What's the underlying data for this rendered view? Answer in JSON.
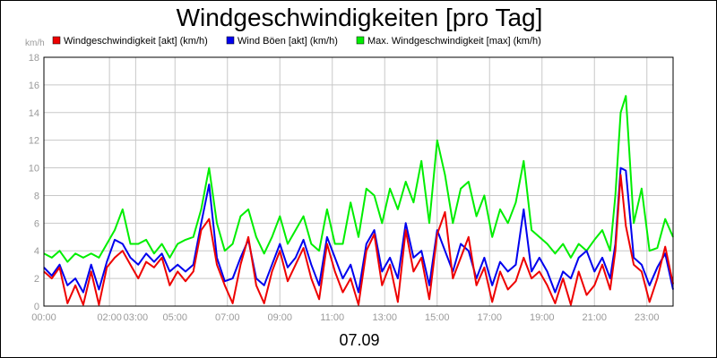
{
  "chart_data": {
    "type": "line",
    "title": "Windgeschwindigkeiten [pro Tag]",
    "ylabel": "km/h",
    "xlabel": "07.09",
    "ylim": [
      0,
      18
    ],
    "yticks": [
      0,
      2,
      4,
      6,
      8,
      10,
      12,
      14,
      16,
      18
    ],
    "xlim": [
      0,
      24
    ],
    "xtick_labels": [
      {
        "x": 0,
        "label": "00:00"
      },
      {
        "x": 2.5,
        "label": "02:00"
      },
      {
        "x": 3.5,
        "label": "03:00"
      },
      {
        "x": 5,
        "label": "05:00"
      },
      {
        "x": 7,
        "label": "07:00"
      },
      {
        "x": 9,
        "label": "09:00"
      },
      {
        "x": 11,
        "label": "11:00"
      },
      {
        "x": 13,
        "label": "13:00"
      },
      {
        "x": 15,
        "label": "15:00"
      },
      {
        "x": 17,
        "label": "17:00"
      },
      {
        "x": 19,
        "label": "19:00"
      },
      {
        "x": 21,
        "label": "21:00"
      },
      {
        "x": 23,
        "label": "23:00"
      }
    ],
    "grid": true,
    "legend_position": "top",
    "series": [
      {
        "name": "Windgeschwindigkeit [akt] (km/h)",
        "color": "#ee0000",
        "x": [
          0,
          0.3,
          0.6,
          0.9,
          1.2,
          1.5,
          1.8,
          2.1,
          2.4,
          2.7,
          3.0,
          3.3,
          3.6,
          3.9,
          4.2,
          4.5,
          4.8,
          5.1,
          5.4,
          5.7,
          6.0,
          6.3,
          6.6,
          6.9,
          7.2,
          7.5,
          7.8,
          8.1,
          8.4,
          8.7,
          9.0,
          9.3,
          9.6,
          9.9,
          10.2,
          10.5,
          10.8,
          11.1,
          11.4,
          11.7,
          12.0,
          12.3,
          12.6,
          12.9,
          13.2,
          13.5,
          13.8,
          14.1,
          14.4,
          14.7,
          15.0,
          15.3,
          15.6,
          15.9,
          16.2,
          16.5,
          16.8,
          17.1,
          17.4,
          17.7,
          18.0,
          18.3,
          18.6,
          18.9,
          19.2,
          19.5,
          19.8,
          20.1,
          20.4,
          20.7,
          21.0,
          21.3,
          21.6,
          21.8,
          22.0,
          22.2,
          22.5,
          22.8,
          23.1,
          23.4,
          23.7,
          24.0
        ],
        "y": [
          2.5,
          2.0,
          2.8,
          0.2,
          1.5,
          0.1,
          2.5,
          0.1,
          2.8,
          3.5,
          4.0,
          3.0,
          2.0,
          3.2,
          2.8,
          3.5,
          1.5,
          2.5,
          1.8,
          2.5,
          5.5,
          6.3,
          3.0,
          1.5,
          0.2,
          3.0,
          5.0,
          1.5,
          0.2,
          2.5,
          4.0,
          1.8,
          3.0,
          4.2,
          2.0,
          0.5,
          4.5,
          2.5,
          1.0,
          2.0,
          0.1,
          4.0,
          5.2,
          1.5,
          3.0,
          0.3,
          5.5,
          2.5,
          3.5,
          0.5,
          5.2,
          6.8,
          2.0,
          3.5,
          5.0,
          1.5,
          2.8,
          0.3,
          2.5,
          1.2,
          1.8,
          3.5,
          2.0,
          2.5,
          1.5,
          0.2,
          2.0,
          0.1,
          2.5,
          0.8,
          1.5,
          3.0,
          1.2,
          4.0,
          9.5,
          5.8,
          3.0,
          2.5,
          0.3,
          2.0,
          4.3,
          1.6
        ]
      },
      {
        "name": "Wind Böen [akt] (km/h)",
        "color": "#0000ee",
        "x": [
          0,
          0.3,
          0.6,
          0.9,
          1.2,
          1.5,
          1.8,
          2.1,
          2.4,
          2.7,
          3.0,
          3.3,
          3.6,
          3.9,
          4.2,
          4.5,
          4.8,
          5.1,
          5.4,
          5.7,
          6.0,
          6.3,
          6.6,
          6.9,
          7.2,
          7.5,
          7.8,
          8.1,
          8.4,
          8.7,
          9.0,
          9.3,
          9.6,
          9.9,
          10.2,
          10.5,
          10.8,
          11.1,
          11.4,
          11.7,
          12.0,
          12.3,
          12.6,
          12.9,
          13.2,
          13.5,
          13.8,
          14.1,
          14.4,
          14.7,
          15.0,
          15.3,
          15.6,
          15.9,
          16.2,
          16.5,
          16.8,
          17.1,
          17.4,
          17.7,
          18.0,
          18.3,
          18.6,
          18.9,
          19.2,
          19.5,
          19.8,
          20.1,
          20.4,
          20.7,
          21.0,
          21.3,
          21.6,
          21.8,
          22.0,
          22.2,
          22.5,
          22.8,
          23.1,
          23.4,
          23.7,
          24.0
        ],
        "y": [
          2.8,
          2.2,
          3.0,
          1.5,
          2.0,
          1.0,
          3.0,
          1.2,
          3.2,
          4.8,
          4.5,
          3.5,
          3.0,
          3.8,
          3.2,
          3.8,
          2.5,
          3.0,
          2.5,
          3.0,
          6.0,
          8.8,
          3.5,
          1.8,
          2.0,
          3.5,
          4.8,
          2.0,
          1.5,
          3.0,
          4.5,
          2.8,
          3.5,
          4.8,
          3.0,
          1.5,
          5.0,
          3.5,
          2.0,
          3.0,
          1.0,
          4.5,
          5.5,
          2.5,
          3.5,
          2.0,
          6.0,
          3.5,
          4.0,
          1.5,
          5.5,
          4.0,
          2.5,
          4.5,
          4.0,
          2.0,
          3.5,
          1.5,
          3.2,
          2.5,
          3.0,
          7.0,
          2.5,
          3.5,
          2.5,
          1.0,
          2.5,
          2.0,
          3.5,
          4.0,
          2.5,
          3.5,
          2.0,
          4.5,
          10.0,
          9.8,
          3.5,
          3.0,
          1.5,
          2.8,
          3.8,
          1.2
        ]
      },
      {
        "name": "Max. Windgeschwindigkeit [max] (km/h)",
        "color": "#00ee00",
        "x": [
          0,
          0.3,
          0.6,
          0.9,
          1.2,
          1.5,
          1.8,
          2.1,
          2.4,
          2.7,
          3.0,
          3.3,
          3.6,
          3.9,
          4.2,
          4.5,
          4.8,
          5.1,
          5.4,
          5.7,
          6.0,
          6.3,
          6.6,
          6.9,
          7.2,
          7.5,
          7.8,
          8.1,
          8.4,
          8.7,
          9.0,
          9.3,
          9.6,
          9.9,
          10.2,
          10.5,
          10.8,
          11.1,
          11.4,
          11.7,
          12.0,
          12.3,
          12.6,
          12.9,
          13.2,
          13.5,
          13.8,
          14.1,
          14.4,
          14.7,
          15.0,
          15.3,
          15.6,
          15.9,
          16.2,
          16.5,
          16.8,
          17.1,
          17.4,
          17.7,
          18.0,
          18.3,
          18.6,
          18.9,
          19.2,
          19.5,
          19.8,
          20.1,
          20.4,
          20.7,
          21.0,
          21.3,
          21.6,
          21.8,
          22.0,
          22.2,
          22.5,
          22.8,
          23.1,
          23.4,
          23.7,
          24.0
        ],
        "y": [
          3.8,
          3.5,
          4.0,
          3.2,
          3.8,
          3.5,
          3.8,
          3.5,
          4.5,
          5.5,
          7.0,
          4.5,
          4.5,
          4.8,
          3.8,
          4.5,
          3.5,
          4.5,
          4.8,
          5.0,
          7.0,
          10.0,
          6.0,
          4.0,
          4.5,
          6.5,
          7.0,
          5.0,
          3.8,
          5.0,
          6.5,
          4.5,
          5.5,
          6.5,
          4.5,
          4.0,
          7.0,
          4.5,
          4.5,
          7.5,
          5.0,
          8.5,
          8.0,
          6.0,
          8.5,
          7.0,
          9.0,
          7.5,
          10.5,
          6.0,
          12.0,
          9.5,
          6.0,
          8.5,
          9.0,
          6.5,
          8.0,
          5.0,
          7.0,
          6.0,
          7.5,
          10.5,
          5.5,
          5.0,
          4.5,
          3.8,
          4.5,
          3.5,
          4.5,
          4.0,
          4.8,
          5.5,
          4.0,
          8.0,
          14.0,
          15.2,
          6.0,
          8.5,
          4.0,
          4.2,
          6.3,
          5.0
        ]
      }
    ]
  }
}
